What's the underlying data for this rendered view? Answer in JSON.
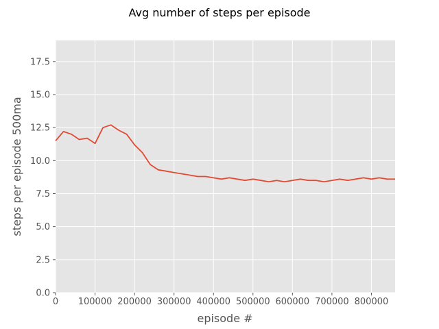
{
  "chart_data": {
    "type": "line",
    "title": "Avg number of steps per episode",
    "xlabel": "episode #",
    "ylabel": "steps per episode 500ma",
    "xlim": [
      0,
      860000
    ],
    "ylim": [
      0,
      19.1
    ],
    "xticks": [
      0,
      100000,
      200000,
      300000,
      400000,
      500000,
      600000,
      700000,
      800000
    ],
    "xtick_labels": [
      "0",
      "100000",
      "200000",
      "300000",
      "400000",
      "500000",
      "600000",
      "700000",
      "800000"
    ],
    "yticks": [
      0,
      2.5,
      5,
      7.5,
      10,
      12.5,
      15,
      17.5
    ],
    "ytick_labels": [
      "0.0",
      "2.5",
      "5.0",
      "7.5",
      "10.0",
      "12.5",
      "15.0",
      "17.5"
    ],
    "grid": true,
    "legend": "none",
    "style": {
      "background": "#e5e5e5",
      "line_color": "#e24a33"
    },
    "series": [
      {
        "x": [
          0,
          20000,
          40000,
          60000,
          80000,
          100000,
          120000,
          140000,
          160000,
          180000,
          200000,
          220000,
          240000,
          260000,
          280000,
          300000,
          320000,
          340000,
          360000,
          380000,
          400000,
          420000,
          440000,
          460000,
          480000,
          500000,
          520000,
          540000,
          560000,
          580000,
          600000,
          620000,
          640000,
          660000,
          680000,
          700000,
          720000,
          740000,
          760000,
          780000,
          800000,
          820000,
          840000,
          860000
        ],
        "y": [
          11.5,
          12.2,
          12.0,
          11.6,
          11.7,
          11.3,
          12.5,
          12.7,
          12.3,
          12.0,
          11.2,
          10.6,
          9.7,
          9.3,
          9.2,
          9.1,
          9.0,
          8.9,
          8.8,
          8.8,
          8.7,
          8.6,
          8.7,
          8.6,
          8.5,
          8.6,
          8.5,
          8.4,
          8.5,
          8.4,
          8.5,
          8.6,
          8.5,
          8.5,
          8.4,
          8.5,
          8.6,
          8.5,
          8.6,
          8.7,
          8.6,
          8.7,
          8.6,
          8.6
        ]
      }
    ]
  }
}
